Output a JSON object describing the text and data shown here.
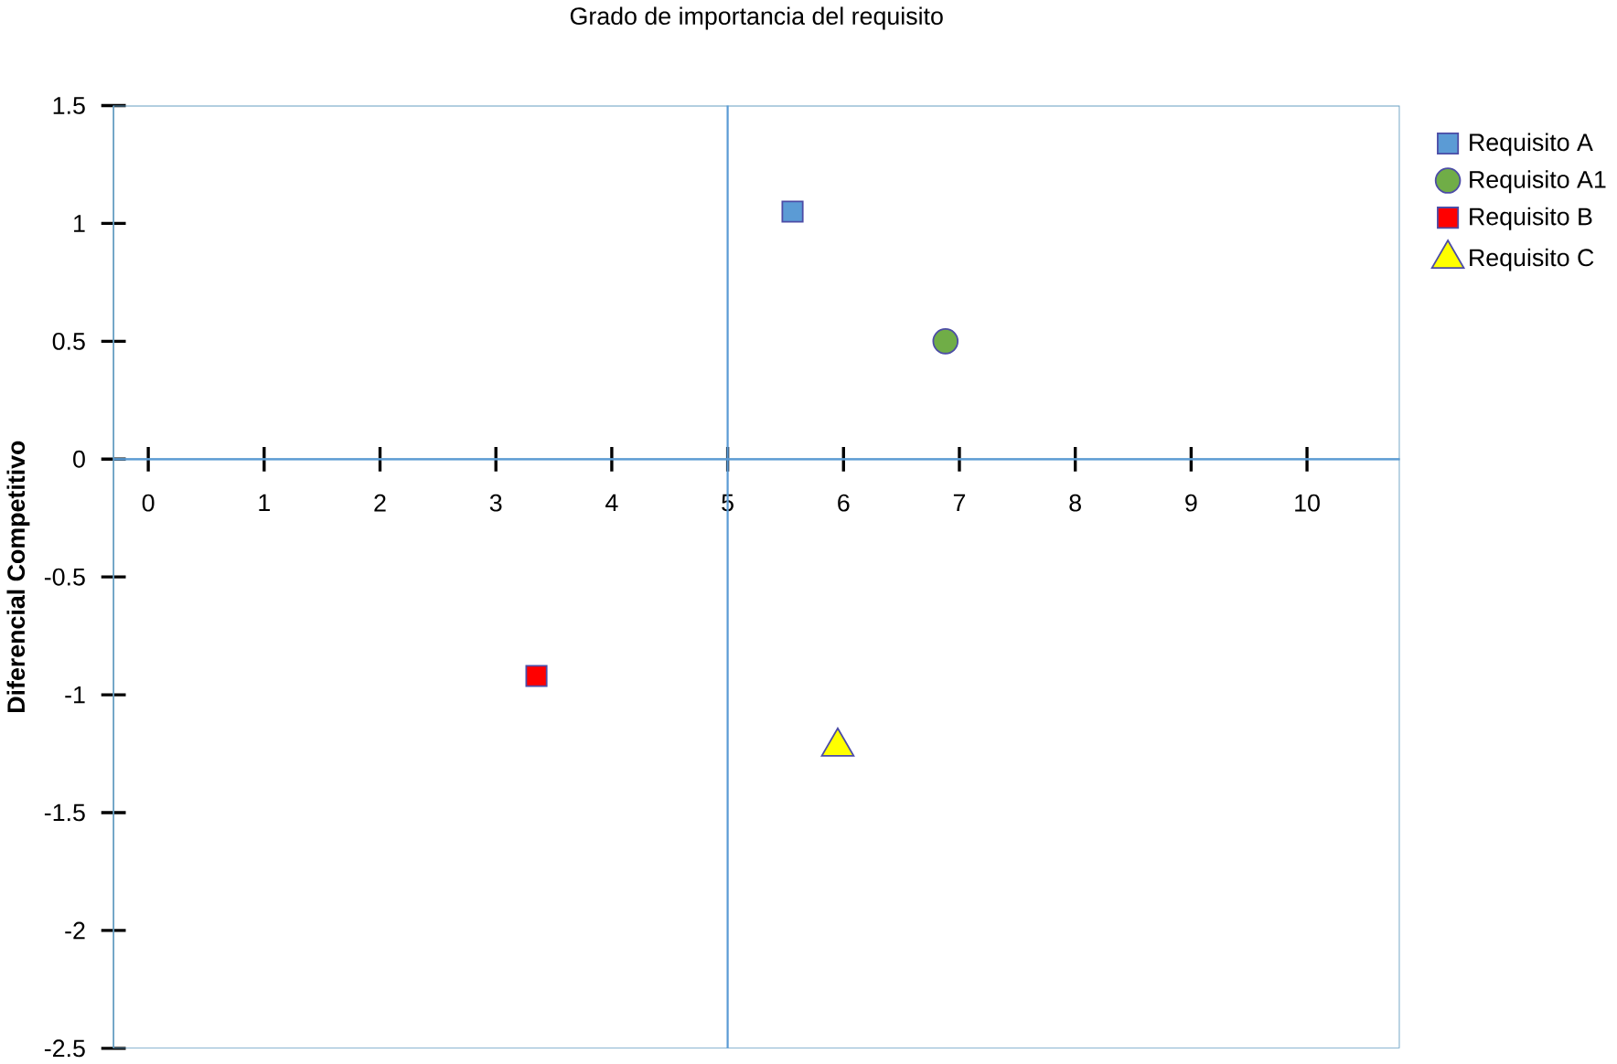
{
  "chart_data": {
    "type": "scatter",
    "xlabel": "Grado de importancia del requisito",
    "ylabel": "Diferencial Competitivo",
    "xlim": [
      -0.3,
      10.8
    ],
    "ylim": [
      -2.5,
      1.5
    ],
    "xticks": [
      0,
      1,
      2,
      3,
      4,
      5,
      6,
      7,
      8,
      9,
      10
    ],
    "yticks": [
      -2.5,
      -2,
      -1.5,
      -1,
      -0.5,
      0,
      0.5,
      1,
      1.5
    ],
    "ref_lines": [
      {
        "axis": "x",
        "value": 5,
        "color": "#5b9bd5"
      },
      {
        "axis": "y",
        "value": 0,
        "color": "#5b9bd5"
      }
    ],
    "legend": "right",
    "grid": false,
    "series": [
      {
        "name": "Requisito A",
        "color": "#5b9bd5",
        "marker": "square",
        "x": [
          5.56
        ],
        "values": [
          1.05
        ]
      },
      {
        "name": "Requisito A1",
        "color": "#70ad47",
        "marker": "circle",
        "x": [
          6.88
        ],
        "values": [
          0.5
        ]
      },
      {
        "name": "Requisito B",
        "color": "#ff0000",
        "marker": "square",
        "x": [
          3.35
        ],
        "values": [
          -0.92
        ]
      },
      {
        "name": "Requisito C",
        "color": "#ffff00",
        "marker": "triangle",
        "x": [
          5.95
        ],
        "values": [
          -1.22
        ]
      }
    ]
  }
}
